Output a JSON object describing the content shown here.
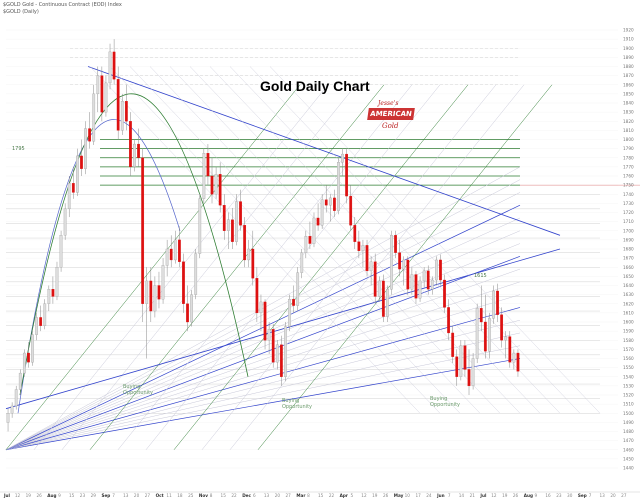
{
  "header": {
    "line1": "$GOLD Gold - Continuous Contract (EOD) Index",
    "line2": "$GOLD (Daily)"
  },
  "colors": {
    "up_candle": "#dddddd",
    "down_candle": "#dd1111",
    "wick": "#888888",
    "fan_light": "#c8c8d8",
    "fan_blue": "#3344cc",
    "fan_green": "#2e7d32",
    "hline_gray": "#d2d2d2",
    "hline_green": "#2e7d32",
    "arc_blue": "#5566cc",
    "arc_green": "#2e7d32"
  },
  "chart_data": {
    "type": "candlestick",
    "title": "Gold Daily Chart",
    "logo_text": [
      "Jesse's",
      "AMERICAN",
      "Gold"
    ],
    "y_axis": {
      "min": 1440,
      "max": 1920,
      "step": 10,
      "labels": [
        "1920",
        "1910",
        "1900",
        "1890",
        "1880",
        "1870",
        "1860",
        "1850",
        "1840",
        "1830",
        "1820",
        "1810",
        "1800",
        "1790",
        "1780",
        "1770",
        "1760",
        "1750",
        "1740",
        "1730",
        "1720",
        "1710",
        "1700",
        "1690",
        "1680",
        "1670",
        "1660",
        "1650",
        "1640",
        "1630",
        "1620",
        "1610",
        "1600",
        "1590",
        "1580",
        "1570",
        "1560",
        "1550",
        "1540",
        "1530",
        "1520",
        "1510",
        "1500",
        "1490",
        "1480",
        "1470",
        "1460",
        "1450",
        "1440"
      ]
    },
    "x_axis_labels": [
      "Jul",
      "12",
      "19",
      "26",
      "Aug",
      "9",
      "15",
      "23",
      "29",
      "Sep",
      "7",
      "13",
      "20",
      "27",
      "Oct",
      "11",
      "18",
      "25",
      "Nov",
      "8",
      "15",
      "22",
      "Dec",
      "6",
      "13",
      "20",
      "27",
      "Mar",
      "8",
      "15",
      "22",
      "Apr",
      "5",
      "12",
      "19",
      "26",
      "May",
      "10",
      "17",
      "24",
      "Jun",
      "7",
      "14",
      "21",
      "Jul",
      "12",
      "19",
      "26",
      "Aug",
      "9",
      "16",
      "23",
      "30",
      "Sep",
      "7",
      "13",
      "20",
      "27"
    ],
    "annotations": [
      {
        "text": "Buying\nOpportunity",
        "x": 24,
        "y": 1556
      },
      {
        "text": "Buying\nOpportunity",
        "x": 57,
        "y": 1527
      },
      {
        "text": "Buying\nOpportunity",
        "x": 100,
        "y": 1529
      },
      {
        "text": "1795",
        "x": 2,
        "y": 1795
      },
      {
        "text": "1615",
        "x": 114,
        "y": 1686
      }
    ],
    "candles": [
      {
        "o": 1490,
        "h": 1505,
        "l": 1480,
        "c": 1500
      },
      {
        "o": 1500,
        "h": 1512,
        "l": 1495,
        "c": 1508
      },
      {
        "o": 1508,
        "h": 1530,
        "l": 1504,
        "c": 1526
      },
      {
        "o": 1526,
        "h": 1548,
        "l": 1520,
        "c": 1544
      },
      {
        "o": 1544,
        "h": 1570,
        "l": 1540,
        "c": 1566
      },
      {
        "o": 1566,
        "h": 1578,
        "l": 1550,
        "c": 1556
      },
      {
        "o": 1556,
        "h": 1590,
        "l": 1552,
        "c": 1586
      },
      {
        "o": 1586,
        "h": 1610,
        "l": 1580,
        "c": 1605
      },
      {
        "o": 1605,
        "h": 1618,
        "l": 1590,
        "c": 1596
      },
      {
        "o": 1596,
        "h": 1625,
        "l": 1592,
        "c": 1620
      },
      {
        "o": 1620,
        "h": 1640,
        "l": 1612,
        "c": 1636
      },
      {
        "o": 1636,
        "h": 1650,
        "l": 1620,
        "c": 1628
      },
      {
        "o": 1628,
        "h": 1666,
        "l": 1624,
        "c": 1660
      },
      {
        "o": 1660,
        "h": 1700,
        "l": 1655,
        "c": 1695
      },
      {
        "o": 1695,
        "h": 1730,
        "l": 1690,
        "c": 1724
      },
      {
        "o": 1724,
        "h": 1760,
        "l": 1715,
        "c": 1752
      },
      {
        "o": 1752,
        "h": 1770,
        "l": 1735,
        "c": 1742
      },
      {
        "o": 1742,
        "h": 1790,
        "l": 1738,
        "c": 1782
      },
      {
        "o": 1782,
        "h": 1800,
        "l": 1760,
        "c": 1768
      },
      {
        "o": 1768,
        "h": 1820,
        "l": 1762,
        "c": 1812
      },
      {
        "o": 1812,
        "h": 1830,
        "l": 1790,
        "c": 1798
      },
      {
        "o": 1798,
        "h": 1860,
        "l": 1794,
        "c": 1850
      },
      {
        "o": 1850,
        "h": 1880,
        "l": 1830,
        "c": 1870
      },
      {
        "o": 1870,
        "h": 1880,
        "l": 1820,
        "c": 1830
      },
      {
        "o": 1830,
        "h": 1870,
        "l": 1825,
        "c": 1862
      },
      {
        "o": 1862,
        "h": 1905,
        "l": 1855,
        "c": 1896
      },
      {
        "o": 1896,
        "h": 1910,
        "l": 1860,
        "c": 1866
      },
      {
        "o": 1866,
        "h": 1880,
        "l": 1800,
        "c": 1810
      },
      {
        "o": 1810,
        "h": 1850,
        "l": 1805,
        "c": 1842
      },
      {
        "o": 1842,
        "h": 1860,
        "l": 1810,
        "c": 1820
      },
      {
        "o": 1820,
        "h": 1830,
        "l": 1760,
        "c": 1770
      },
      {
        "o": 1770,
        "h": 1800,
        "l": 1765,
        "c": 1795
      },
      {
        "o": 1795,
        "h": 1812,
        "l": 1770,
        "c": 1780
      },
      {
        "o": 1780,
        "h": 1790,
        "l": 1600,
        "c": 1620
      },
      {
        "o": 1620,
        "h": 1660,
        "l": 1560,
        "c": 1645
      },
      {
        "o": 1645,
        "h": 1660,
        "l": 1600,
        "c": 1612
      },
      {
        "o": 1612,
        "h": 1650,
        "l": 1605,
        "c": 1640
      },
      {
        "o": 1640,
        "h": 1655,
        "l": 1615,
        "c": 1625
      },
      {
        "o": 1625,
        "h": 1670,
        "l": 1620,
        "c": 1662
      },
      {
        "o": 1662,
        "h": 1690,
        "l": 1650,
        "c": 1680
      },
      {
        "o": 1680,
        "h": 1695,
        "l": 1660,
        "c": 1668
      },
      {
        "o": 1668,
        "h": 1700,
        "l": 1664,
        "c": 1690
      },
      {
        "o": 1690,
        "h": 1705,
        "l": 1660,
        "c": 1666
      },
      {
        "o": 1666,
        "h": 1675,
        "l": 1610,
        "c": 1620
      },
      {
        "o": 1620,
        "h": 1640,
        "l": 1590,
        "c": 1600
      },
      {
        "o": 1600,
        "h": 1635,
        "l": 1595,
        "c": 1630
      },
      {
        "o": 1630,
        "h": 1680,
        "l": 1625,
        "c": 1675
      },
      {
        "o": 1675,
        "h": 1740,
        "l": 1670,
        "c": 1735
      },
      {
        "o": 1735,
        "h": 1790,
        "l": 1730,
        "c": 1785
      },
      {
        "o": 1785,
        "h": 1795,
        "l": 1750,
        "c": 1760
      },
      {
        "o": 1760,
        "h": 1780,
        "l": 1730,
        "c": 1740
      },
      {
        "o": 1740,
        "h": 1770,
        "l": 1735,
        "c": 1762
      },
      {
        "o": 1762,
        "h": 1775,
        "l": 1720,
        "c": 1728
      },
      {
        "o": 1728,
        "h": 1740,
        "l": 1690,
        "c": 1700
      },
      {
        "o": 1700,
        "h": 1720,
        "l": 1680,
        "c": 1712
      },
      {
        "o": 1712,
        "h": 1725,
        "l": 1680,
        "c": 1688
      },
      {
        "o": 1688,
        "h": 1740,
        "l": 1684,
        "c": 1732
      },
      {
        "o": 1732,
        "h": 1745,
        "l": 1700,
        "c": 1706
      },
      {
        "o": 1706,
        "h": 1715,
        "l": 1660,
        "c": 1668
      },
      {
        "o": 1668,
        "h": 1690,
        "l": 1660,
        "c": 1680
      },
      {
        "o": 1680,
        "h": 1700,
        "l": 1640,
        "c": 1648
      },
      {
        "o": 1648,
        "h": 1660,
        "l": 1600,
        "c": 1610
      },
      {
        "o": 1610,
        "h": 1630,
        "l": 1590,
        "c": 1622
      },
      {
        "o": 1622,
        "h": 1625,
        "l": 1570,
        "c": 1580
      },
      {
        "o": 1580,
        "h": 1600,
        "l": 1565,
        "c": 1592
      },
      {
        "o": 1592,
        "h": 1598,
        "l": 1550,
        "c": 1556
      },
      {
        "o": 1556,
        "h": 1580,
        "l": 1548,
        "c": 1575
      },
      {
        "o": 1575,
        "h": 1585,
        "l": 1530,
        "c": 1540
      },
      {
        "o": 1540,
        "h": 1600,
        "l": 1535,
        "c": 1595
      },
      {
        "o": 1595,
        "h": 1630,
        "l": 1590,
        "c": 1625
      },
      {
        "o": 1625,
        "h": 1640,
        "l": 1610,
        "c": 1618
      },
      {
        "o": 1618,
        "h": 1660,
        "l": 1612,
        "c": 1654
      },
      {
        "o": 1654,
        "h": 1680,
        "l": 1648,
        "c": 1676
      },
      {
        "o": 1676,
        "h": 1700,
        "l": 1670,
        "c": 1694
      },
      {
        "o": 1694,
        "h": 1710,
        "l": 1680,
        "c": 1686
      },
      {
        "o": 1686,
        "h": 1720,
        "l": 1682,
        "c": 1714
      },
      {
        "o": 1714,
        "h": 1730,
        "l": 1700,
        "c": 1706
      },
      {
        "o": 1706,
        "h": 1740,
        "l": 1702,
        "c": 1734
      },
      {
        "o": 1734,
        "h": 1750,
        "l": 1720,
        "c": 1728
      },
      {
        "o": 1728,
        "h": 1740,
        "l": 1710,
        "c": 1736
      },
      {
        "o": 1736,
        "h": 1745,
        "l": 1715,
        "c": 1722
      },
      {
        "o": 1722,
        "h": 1780,
        "l": 1718,
        "c": 1775
      },
      {
        "o": 1775,
        "h": 1790,
        "l": 1760,
        "c": 1784
      },
      {
        "o": 1784,
        "h": 1790,
        "l": 1730,
        "c": 1738
      },
      {
        "o": 1738,
        "h": 1750,
        "l": 1700,
        "c": 1706
      },
      {
        "o": 1706,
        "h": 1715,
        "l": 1680,
        "c": 1688
      },
      {
        "o": 1688,
        "h": 1700,
        "l": 1670,
        "c": 1678
      },
      {
        "o": 1678,
        "h": 1690,
        "l": 1660,
        "c": 1684
      },
      {
        "o": 1684,
        "h": 1690,
        "l": 1650,
        "c": 1656
      },
      {
        "o": 1656,
        "h": 1672,
        "l": 1640,
        "c": 1666
      },
      {
        "o": 1666,
        "h": 1675,
        "l": 1620,
        "c": 1628
      },
      {
        "o": 1628,
        "h": 1650,
        "l": 1622,
        "c": 1645
      },
      {
        "o": 1645,
        "h": 1652,
        "l": 1600,
        "c": 1606
      },
      {
        "o": 1606,
        "h": 1640,
        "l": 1600,
        "c": 1636
      },
      {
        "o": 1636,
        "h": 1700,
        "l": 1630,
        "c": 1695
      },
      {
        "o": 1695,
        "h": 1700,
        "l": 1670,
        "c": 1676
      },
      {
        "o": 1676,
        "h": 1690,
        "l": 1650,
        "c": 1658
      },
      {
        "o": 1658,
        "h": 1672,
        "l": 1640,
        "c": 1668
      },
      {
        "o": 1668,
        "h": 1672,
        "l": 1630,
        "c": 1636
      },
      {
        "o": 1636,
        "h": 1660,
        "l": 1630,
        "c": 1652
      },
      {
        "o": 1652,
        "h": 1656,
        "l": 1620,
        "c": 1626
      },
      {
        "o": 1626,
        "h": 1650,
        "l": 1622,
        "c": 1645
      },
      {
        "o": 1645,
        "h": 1660,
        "l": 1638,
        "c": 1656
      },
      {
        "o": 1656,
        "h": 1662,
        "l": 1630,
        "c": 1636
      },
      {
        "o": 1636,
        "h": 1650,
        "l": 1630,
        "c": 1646
      },
      {
        "o": 1646,
        "h": 1672,
        "l": 1640,
        "c": 1668
      },
      {
        "o": 1668,
        "h": 1674,
        "l": 1640,
        "c": 1646
      },
      {
        "o": 1646,
        "h": 1652,
        "l": 1610,
        "c": 1616
      },
      {
        "o": 1616,
        "h": 1625,
        "l": 1580,
        "c": 1588
      },
      {
        "o": 1588,
        "h": 1596,
        "l": 1555,
        "c": 1562
      },
      {
        "o": 1562,
        "h": 1570,
        "l": 1530,
        "c": 1540
      },
      {
        "o": 1540,
        "h": 1580,
        "l": 1536,
        "c": 1574
      },
      {
        "o": 1574,
        "h": 1580,
        "l": 1540,
        "c": 1548
      },
      {
        "o": 1548,
        "h": 1570,
        "l": 1520,
        "c": 1530
      },
      {
        "o": 1530,
        "h": 1566,
        "l": 1526,
        "c": 1560
      },
      {
        "o": 1560,
        "h": 1620,
        "l": 1555,
        "c": 1615
      },
      {
        "o": 1615,
        "h": 1640,
        "l": 1590,
        "c": 1600
      },
      {
        "o": 1600,
        "h": 1630,
        "l": 1560,
        "c": 1568
      },
      {
        "o": 1568,
        "h": 1610,
        "l": 1560,
        "c": 1604
      },
      {
        "o": 1604,
        "h": 1640,
        "l": 1598,
        "c": 1634
      },
      {
        "o": 1634,
        "h": 1642,
        "l": 1600,
        "c": 1608
      },
      {
        "o": 1608,
        "h": 1616,
        "l": 1572,
        "c": 1580
      },
      {
        "o": 1580,
        "h": 1590,
        "l": 1560,
        "c": 1584
      },
      {
        "o": 1584,
        "h": 1590,
        "l": 1550,
        "c": 1556
      },
      {
        "o": 1556,
        "h": 1570,
        "l": 1548,
        "c": 1566
      },
      {
        "o": 1566,
        "h": 1570,
        "l": 1540,
        "c": 1546
      }
    ]
  }
}
